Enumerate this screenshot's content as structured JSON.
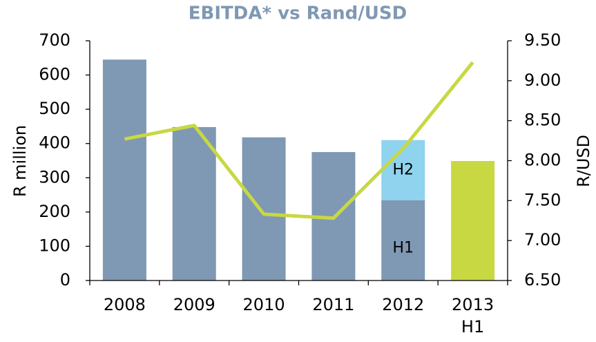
{
  "chart_data": {
    "type": "bar",
    "title": "EBITDA* vs Rand/USD",
    "categories": [
      "2008",
      "2009",
      "2010",
      "2011",
      "2012",
      "2013 H1"
    ],
    "ylabel": "R million",
    "y2label": "R/USD",
    "ylim": [
      0,
      700
    ],
    "yticks": [
      0,
      100,
      200,
      300,
      400,
      500,
      600,
      700
    ],
    "y2lim": [
      6.5,
      9.5
    ],
    "y2ticks": [
      {
        "value": 6.5,
        "label": "6.50"
      },
      {
        "value": 7,
        "label": "7.00"
      },
      {
        "value": 7.5,
        "label": "7.50"
      },
      {
        "value": 8,
        "label": "8.00"
      },
      {
        "value": 8.5,
        "label": "8.50"
      },
      {
        "value": 9,
        "label": "9.00"
      },
      {
        "value": 9.5,
        "label": "9.50"
      }
    ],
    "series": [
      {
        "name": "H1",
        "type": "bar",
        "colors": [
          "#7f98b3",
          "#7f98b3",
          "#7f98b3",
          "#7f98b3",
          "#7f98b3",
          "#c8d843"
        ],
        "values": [
          645,
          448,
          418,
          375,
          234,
          349
        ]
      },
      {
        "name": "H2",
        "type": "bar",
        "color": "#8fd3ee",
        "values": [
          null,
          null,
          null,
          null,
          176,
          null
        ]
      },
      {
        "type": "line",
        "axis": "y2",
        "color": "#c8d843",
        "values": [
          8.27,
          8.44,
          7.33,
          7.28,
          8.15,
          9.23
        ]
      }
    ]
  }
}
